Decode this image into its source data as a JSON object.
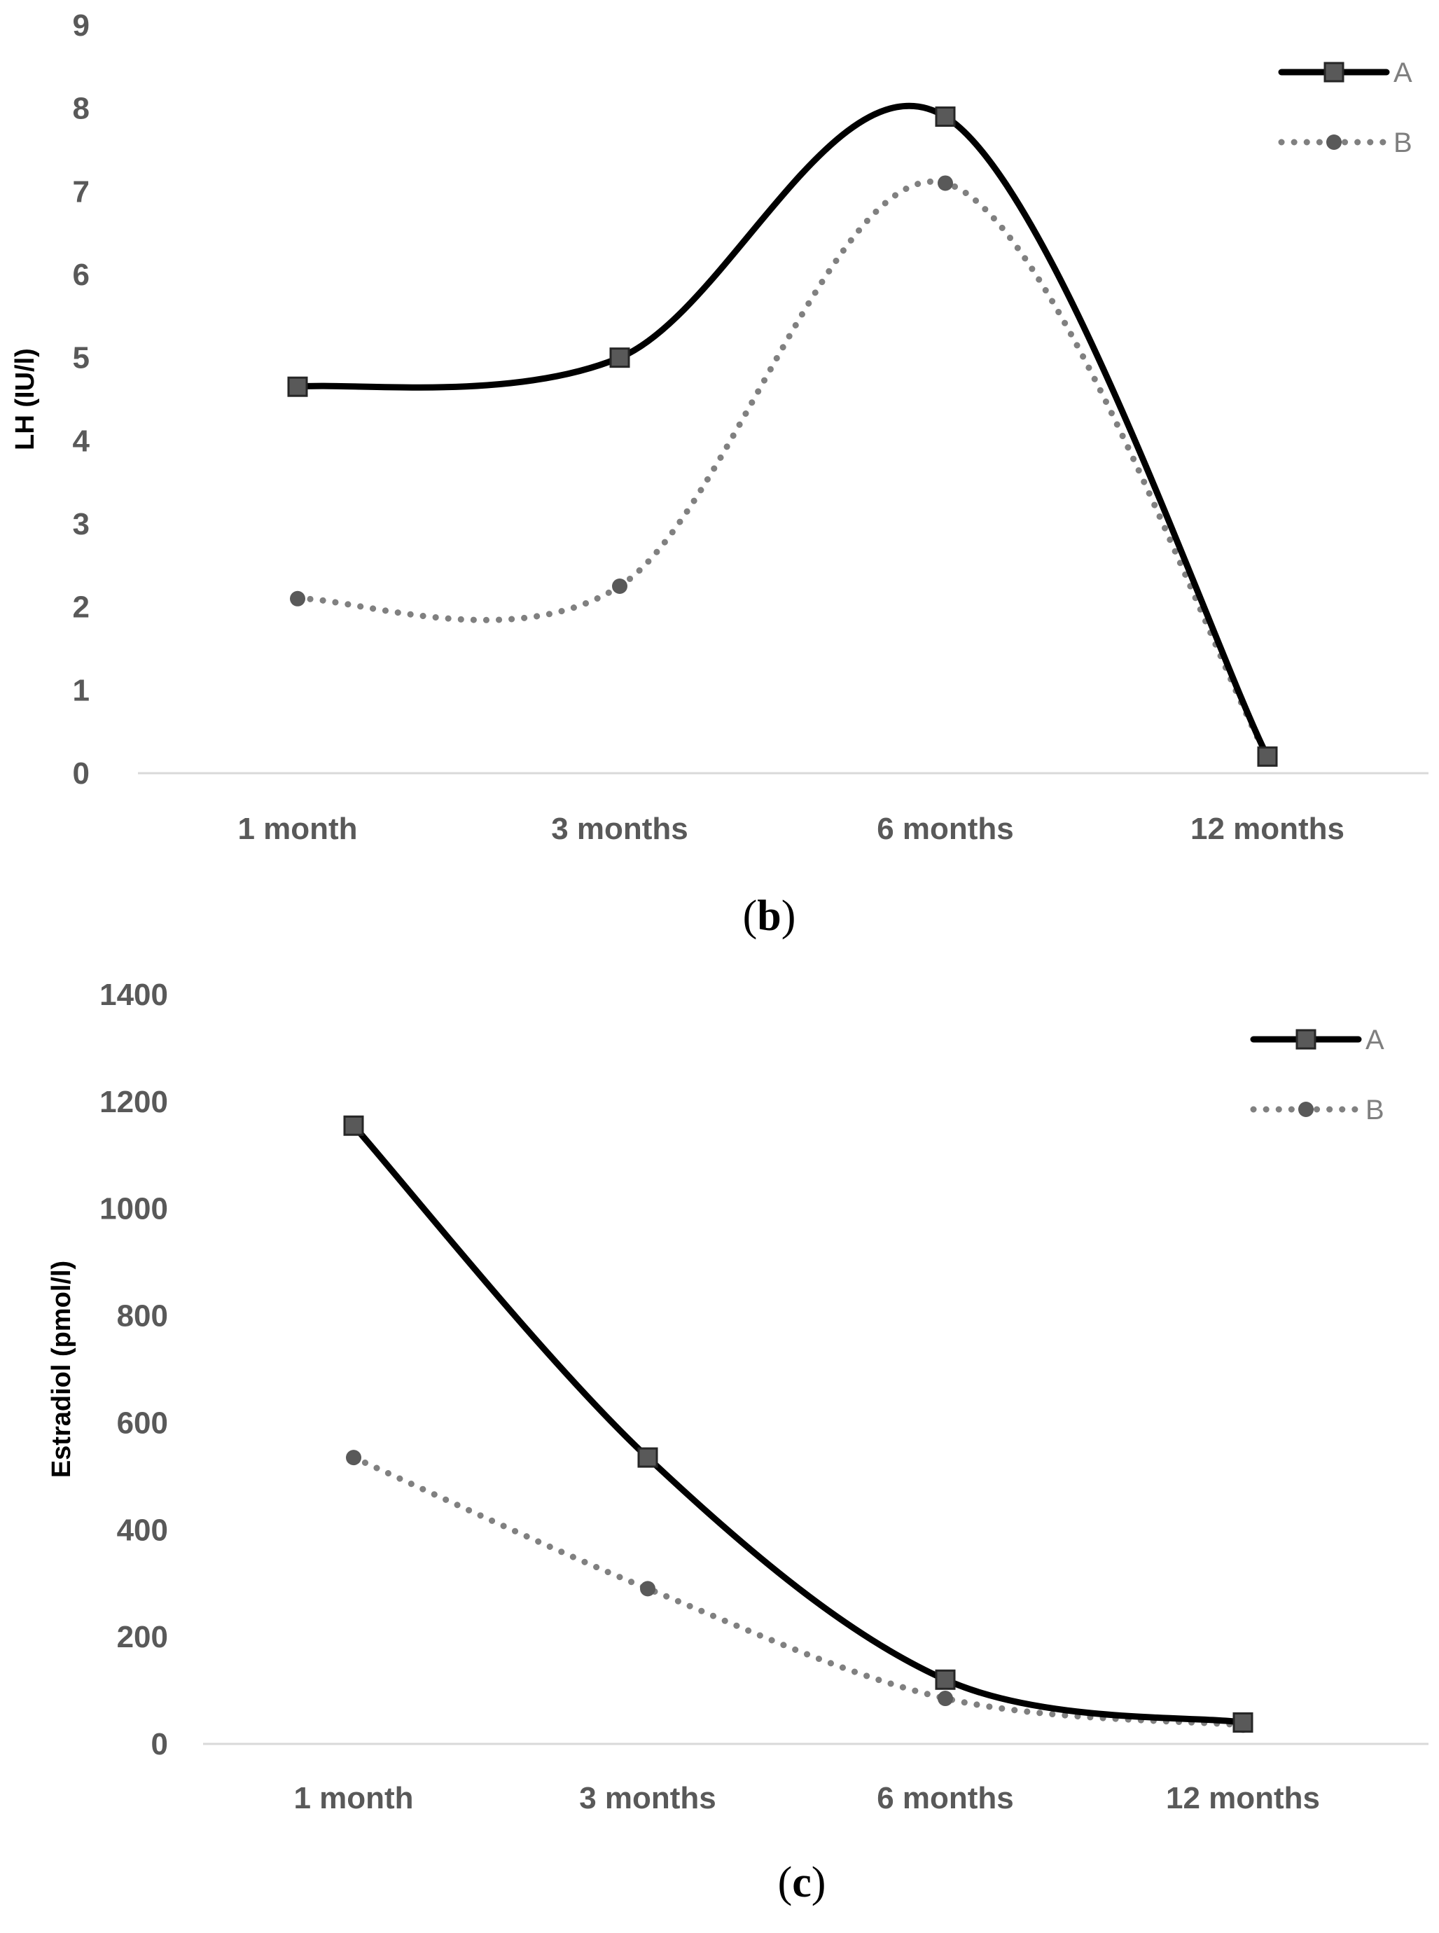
{
  "chart_data": [
    {
      "type": "line",
      "panel_label": "b",
      "categories": [
        "1 month",
        "3 months",
        "6 months",
        "12 months"
      ],
      "ylabel": "LH (IU/l)",
      "xlabel": "",
      "ylim": [
        0,
        9
      ],
      "yticks": [
        "0",
        "1",
        "2",
        "3",
        "4",
        "5",
        "6",
        "7",
        "8",
        "9"
      ],
      "grid": false,
      "legend_position": "top-right",
      "series": [
        {
          "name": "A",
          "values": [
            4.65,
            5.0,
            7.9,
            0.2
          ],
          "color": "#000000",
          "marker_color": "#595959",
          "style": "solid",
          "marker": "square"
        },
        {
          "name": "B",
          "values": [
            2.1,
            2.25,
            7.1,
            0.2
          ],
          "color": "#808080",
          "marker_color": "#595959",
          "style": "dotted",
          "marker": "circle"
        }
      ]
    },
    {
      "type": "line",
      "panel_label": "c",
      "categories": [
        "1 month",
        "3 months",
        "6 months",
        "12 months"
      ],
      "ylabel": "Estradiol (pmol/l)",
      "xlabel": "",
      "ylim": [
        0,
        1400
      ],
      "yticks": [
        "0",
        "200",
        "400",
        "600",
        "800",
        "1000",
        "1200",
        "1400"
      ],
      "grid": false,
      "legend_position": "top-right",
      "series": [
        {
          "name": "A",
          "values": [
            1155,
            535,
            120,
            40
          ],
          "color": "#000000",
          "marker_color": "#595959",
          "style": "solid",
          "marker": "square"
        },
        {
          "name": "B",
          "values": [
            535,
            290,
            85,
            35
          ],
          "color": "#808080",
          "marker_color": "#595959",
          "style": "dotted",
          "marker": "circle"
        }
      ]
    }
  ]
}
